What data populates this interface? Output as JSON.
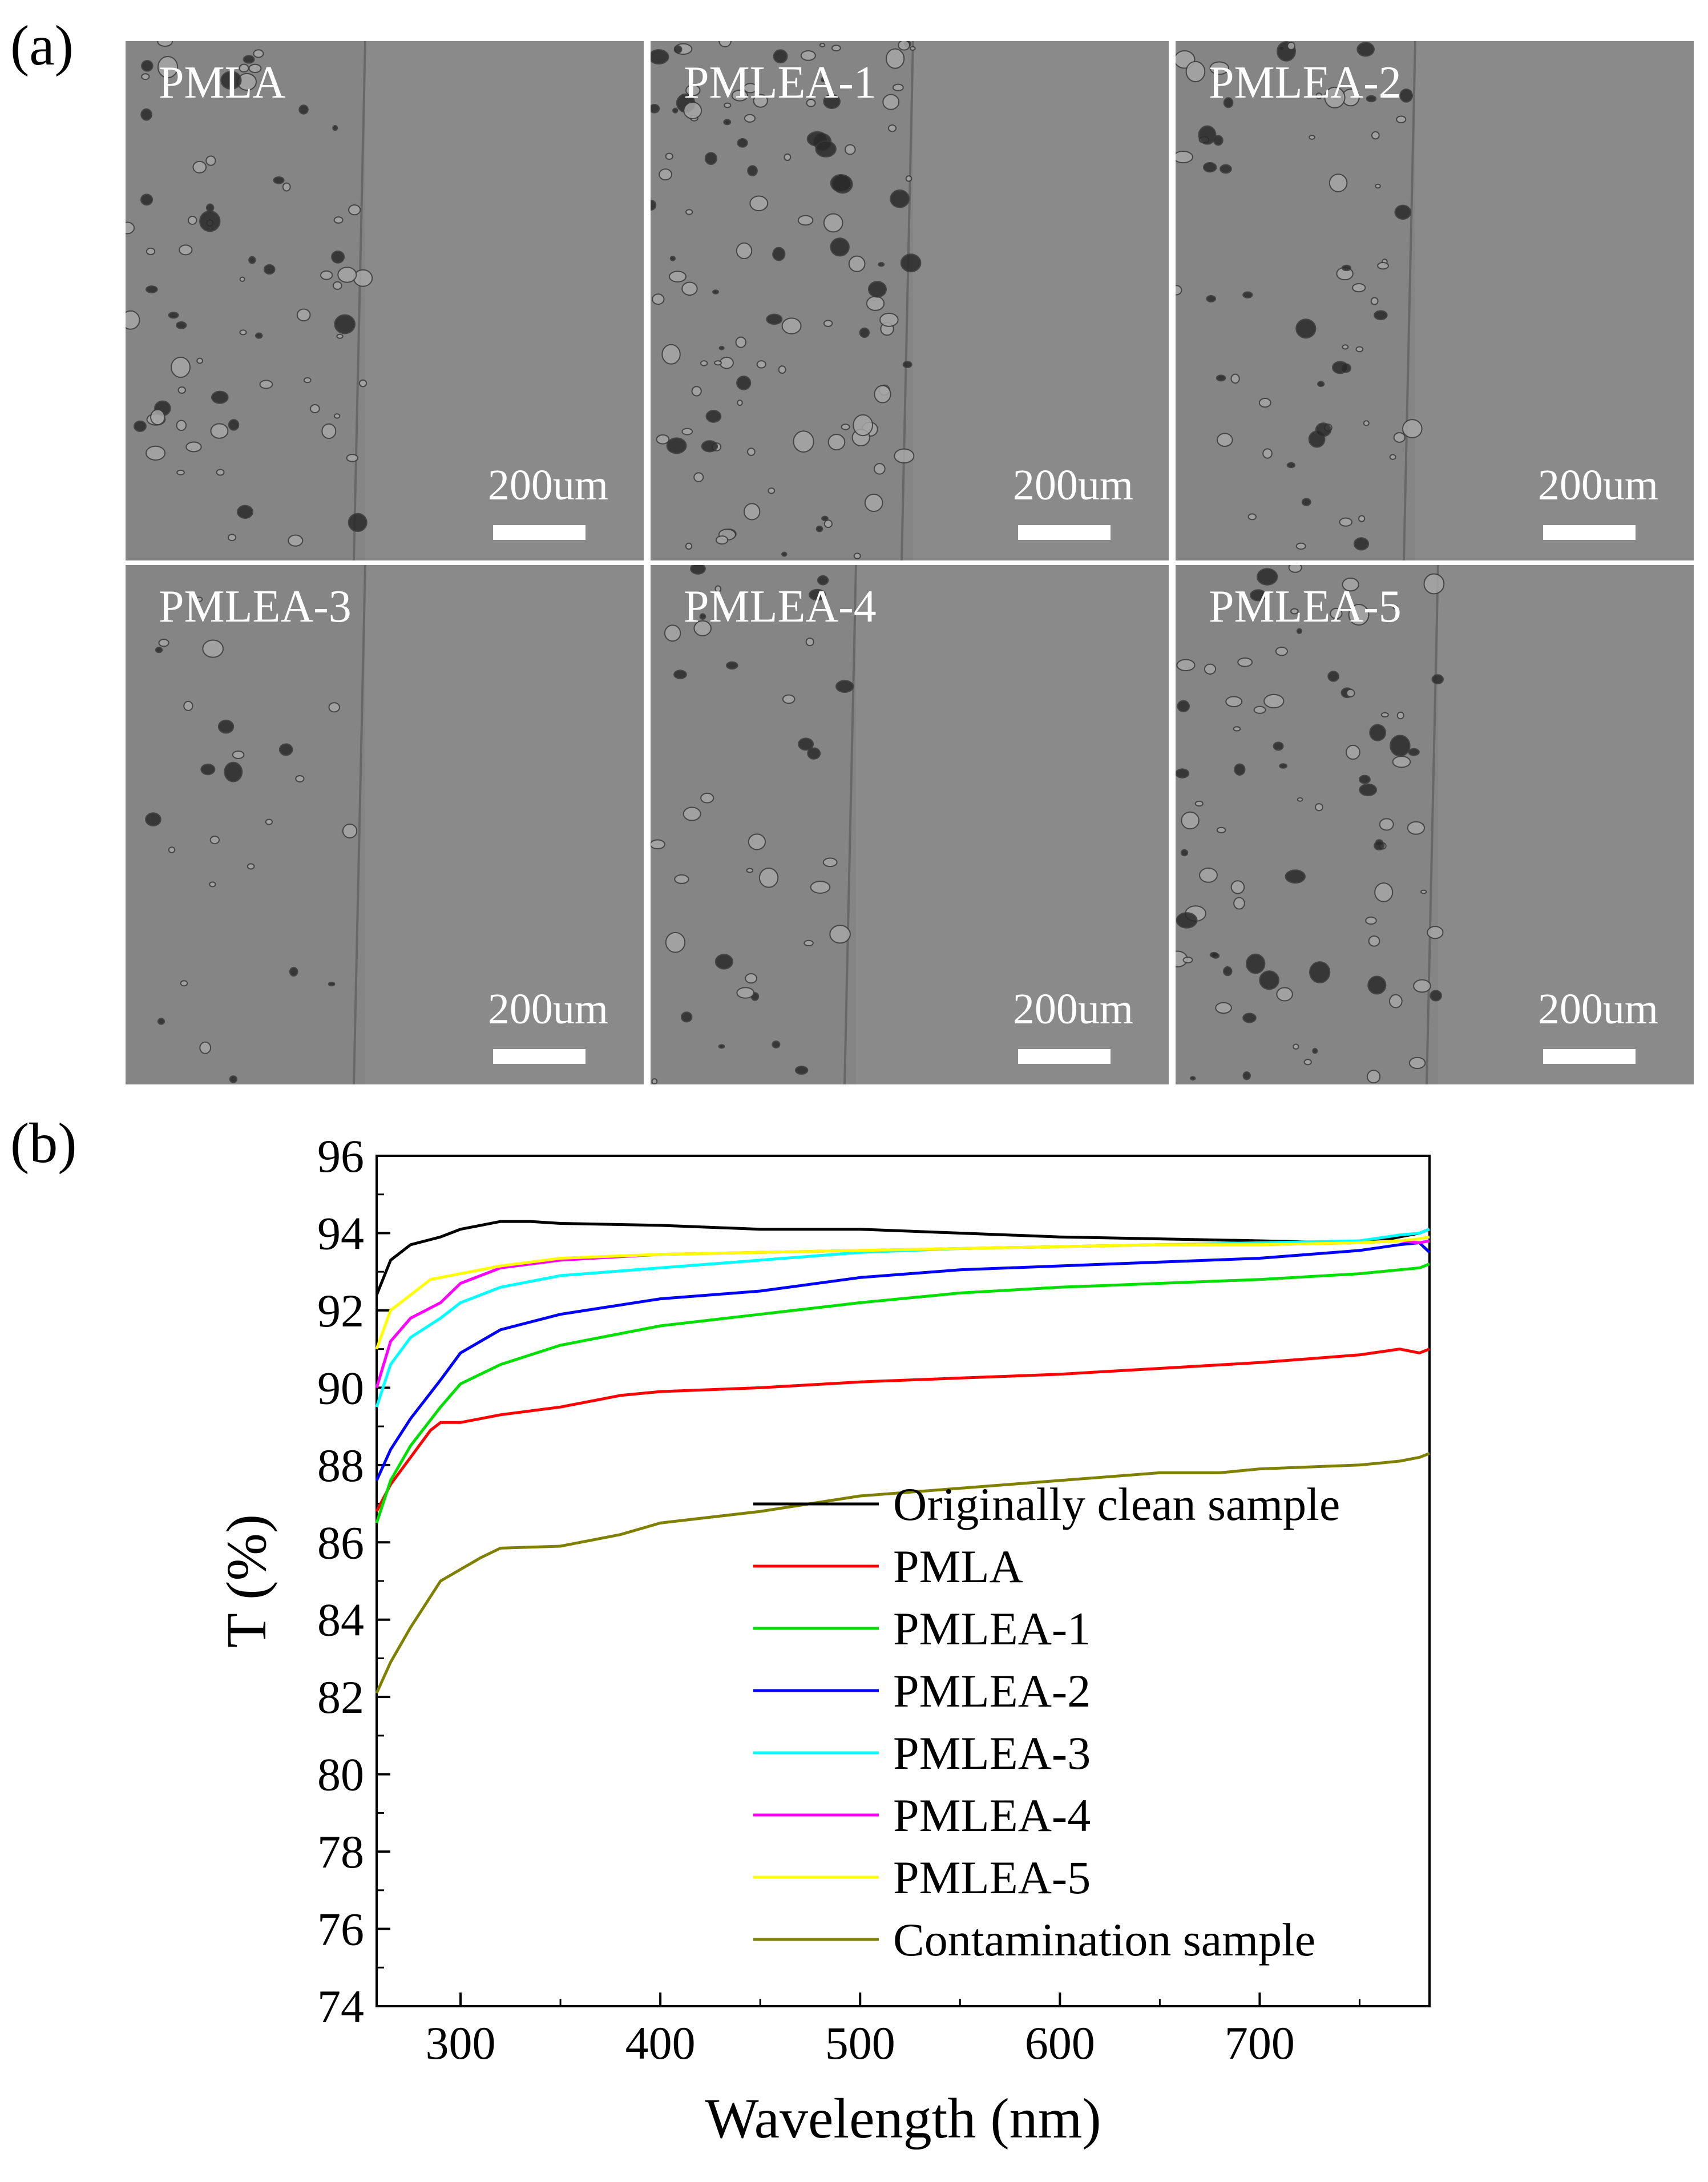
{
  "panel_a": {
    "label": "(a)",
    "micrographs": [
      {
        "title": "PMLA",
        "scale_bar": "200um"
      },
      {
        "title": "PMLEA-1",
        "scale_bar": "200um"
      },
      {
        "title": "PMLEA-2",
        "scale_bar": "200um"
      },
      {
        "title": "PMLEA-3",
        "scale_bar": "200um"
      },
      {
        "title": "PMLEA-4",
        "scale_bar": "200um"
      },
      {
        "title": "PMLEA-5",
        "scale_bar": "200um"
      }
    ]
  },
  "panel_b": {
    "label": "(b)"
  },
  "chart_data": {
    "type": "line",
    "xlabel": "Wavelength (nm)",
    "ylabel": "T (%)",
    "xlim": [
      258,
      785
    ],
    "ylim": [
      74,
      96
    ],
    "xticks": [
      300,
      400,
      500,
      600,
      700
    ],
    "yticks": [
      74,
      76,
      78,
      80,
      82,
      84,
      86,
      88,
      90,
      92,
      94,
      96
    ],
    "grid": false,
    "legend_position": "bottom-right",
    "series": [
      {
        "name": "Originally clean sample",
        "color": "#000000",
        "x": [
          258,
          265,
          275,
          290,
          300,
          310,
          320,
          335,
          350,
          400,
          450,
          500,
          550,
          600,
          650,
          700,
          740,
          760,
          770,
          780,
          785
        ],
        "y": [
          92.4,
          93.3,
          93.7,
          93.9,
          94.1,
          94.2,
          94.3,
          94.3,
          94.25,
          94.2,
          94.1,
          94.1,
          94.0,
          93.9,
          93.85,
          93.8,
          93.75,
          93.8,
          93.9,
          94.0,
          94.1
        ]
      },
      {
        "name": "PMLA",
        "color": "#ff0000",
        "x": [
          258,
          265,
          275,
          285,
          290,
          300,
          320,
          350,
          380,
          400,
          450,
          500,
          550,
          600,
          650,
          700,
          750,
          770,
          780,
          785
        ],
        "y": [
          86.8,
          87.5,
          88.2,
          88.9,
          89.1,
          89.1,
          89.3,
          89.5,
          89.8,
          89.9,
          90.0,
          90.15,
          90.25,
          90.35,
          90.5,
          90.65,
          90.85,
          91.0,
          90.9,
          91.0
        ]
      },
      {
        "name": "PMLEA-1",
        "color": "#00e000",
        "x": [
          258,
          265,
          275,
          290,
          300,
          320,
          350,
          400,
          450,
          500,
          550,
          600,
          650,
          700,
          750,
          770,
          780,
          785
        ],
        "y": [
          86.5,
          87.6,
          88.5,
          89.5,
          90.1,
          90.6,
          91.1,
          91.6,
          91.9,
          92.2,
          92.45,
          92.6,
          92.7,
          92.8,
          92.95,
          93.05,
          93.1,
          93.2
        ]
      },
      {
        "name": "PMLEA-2",
        "color": "#0000ff",
        "x": [
          258,
          265,
          275,
          290,
          300,
          320,
          350,
          400,
          450,
          500,
          550,
          600,
          650,
          700,
          750,
          770,
          780,
          785
        ],
        "y": [
          87.6,
          88.4,
          89.2,
          90.2,
          90.9,
          91.5,
          91.9,
          92.3,
          92.5,
          92.85,
          93.05,
          93.15,
          93.25,
          93.35,
          93.55,
          93.7,
          93.75,
          93.5
        ]
      },
      {
        "name": "PMLEA-3",
        "color": "#00ffff",
        "x": [
          258,
          265,
          275,
          290,
          300,
          320,
          350,
          400,
          450,
          500,
          550,
          600,
          650,
          700,
          750,
          770,
          780,
          785
        ],
        "y": [
          89.5,
          90.6,
          91.3,
          91.8,
          92.2,
          92.6,
          92.9,
          93.1,
          93.3,
          93.5,
          93.6,
          93.65,
          93.7,
          93.75,
          93.8,
          93.95,
          94.0,
          94.1
        ]
      },
      {
        "name": "PMLEA-4",
        "color": "#ff00ff",
        "x": [
          258,
          265,
          275,
          290,
          300,
          320,
          350,
          400,
          450,
          500,
          550,
          600,
          650,
          700,
          750,
          770,
          780,
          785
        ],
        "y": [
          90.0,
          91.2,
          91.8,
          92.2,
          92.7,
          93.1,
          93.3,
          93.45,
          93.5,
          93.55,
          93.6,
          93.65,
          93.7,
          93.7,
          93.75,
          93.8,
          93.75,
          93.8
        ]
      },
      {
        "name": "PMLEA-5",
        "color": "#ffff00",
        "x": [
          258,
          265,
          275,
          285,
          300,
          320,
          350,
          400,
          450,
          500,
          550,
          600,
          650,
          700,
          750,
          770,
          780,
          785
        ],
        "y": [
          91.0,
          92.0,
          92.4,
          92.8,
          92.95,
          93.15,
          93.35,
          93.45,
          93.5,
          93.55,
          93.6,
          93.65,
          93.7,
          93.7,
          93.75,
          93.8,
          93.85,
          93.9
        ]
      },
      {
        "name": "Contamination sample",
        "color": "#808000",
        "x": [
          258,
          265,
          275,
          290,
          300,
          310,
          320,
          350,
          380,
          400,
          450,
          500,
          550,
          600,
          650,
          680,
          700,
          750,
          770,
          780,
          785
        ],
        "y": [
          82.1,
          82.9,
          83.8,
          85.0,
          85.3,
          85.6,
          85.85,
          85.9,
          86.2,
          86.5,
          86.8,
          87.2,
          87.4,
          87.6,
          87.8,
          87.8,
          87.9,
          88.0,
          88.1,
          88.2,
          88.3
        ]
      }
    ]
  }
}
